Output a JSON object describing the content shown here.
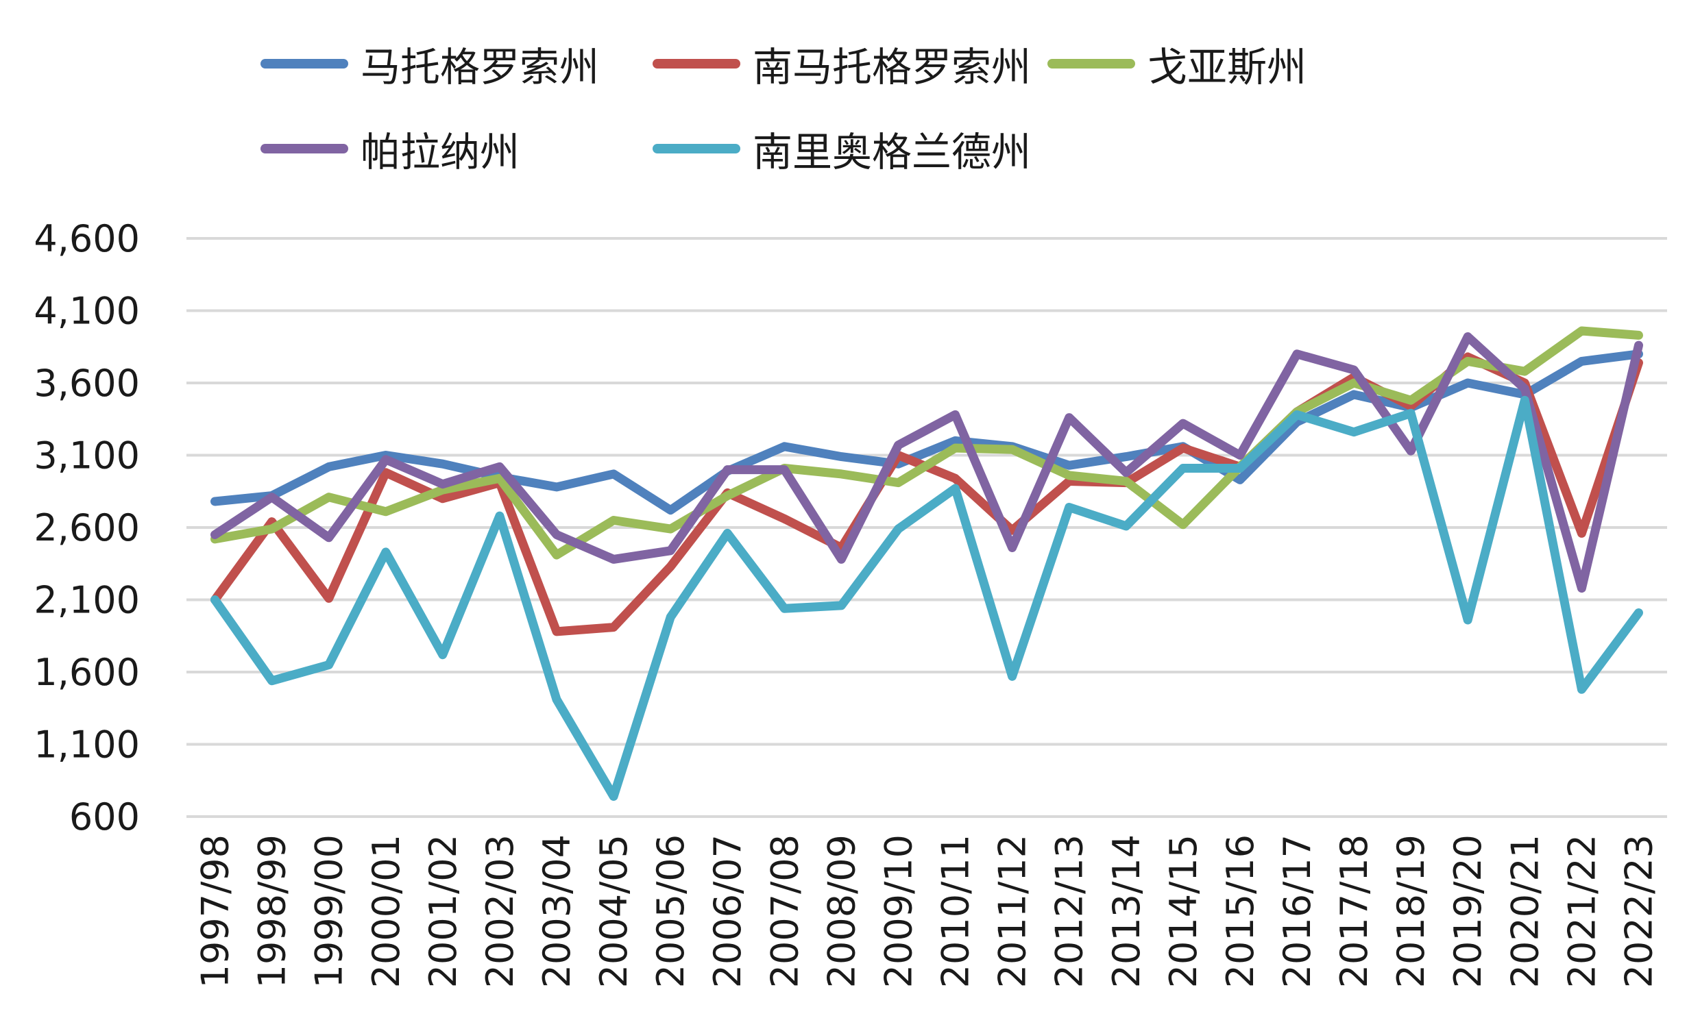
{
  "chart_data": {
    "type": "line",
    "title": "",
    "xlabel": "",
    "ylabel": "",
    "ylim": [
      600,
      4600
    ],
    "yticks": [
      "600",
      "1,100",
      "1,600",
      "2,100",
      "2,600",
      "3,100",
      "3,600",
      "4,100",
      "4,600"
    ],
    "ytick_values": [
      600,
      1100,
      1600,
      2100,
      2600,
      3100,
      3600,
      4100,
      4600
    ],
    "grid": "horizontal",
    "legend_position": "top",
    "categories": [
      "1997/98",
      "1998/99",
      "1999/00",
      "2000/01",
      "2001/02",
      "2002/03",
      "2003/04",
      "2004/05",
      "2005/06",
      "2006/07",
      "2007/08",
      "2008/09",
      "2009/10",
      "2010/11",
      "2011/12",
      "2012/13",
      "2013/14",
      "2014/15",
      "2015/16",
      "2016/17",
      "2017/18",
      "2018/19",
      "2019/20",
      "2020/21",
      "2021/22",
      "2022/23"
    ],
    "series": [
      {
        "name": "马托格罗索州",
        "color": "#4f81bd",
        "values": [
          2780,
          2820,
          3020,
          3100,
          3040,
          2950,
          2880,
          2970,
          2720,
          2990,
          3160,
          3090,
          3040,
          3200,
          3160,
          3030,
          3090,
          3160,
          2930,
          3330,
          3520,
          3430,
          3600,
          3520,
          3750,
          3800
        ]
      },
      {
        "name": "南马托格罗索州",
        "color": "#c0504d",
        "values": [
          2100,
          2640,
          2110,
          2980,
          2800,
          2910,
          1880,
          1910,
          2330,
          2840,
          2660,
          2460,
          3100,
          2940,
          2580,
          2920,
          2910,
          3150,
          3020,
          3400,
          3640,
          3440,
          3780,
          3600,
          2560,
          3740
        ]
      },
      {
        "name": "戈亚斯州",
        "color": "#9bbb59",
        "values": [
          2520,
          2590,
          2810,
          2710,
          2860,
          2940,
          2410,
          2650,
          2590,
          2820,
          3010,
          2970,
          2910,
          3150,
          3140,
          2960,
          2920,
          2620,
          3020,
          3400,
          3600,
          3480,
          3750,
          3680,
          3960,
          3930
        ]
      },
      {
        "name": "帕拉纳州",
        "color": "#8064a2",
        "values": [
          2550,
          2810,
          2530,
          3070,
          2900,
          3020,
          2550,
          2380,
          2440,
          3000,
          3000,
          2380,
          3170,
          3380,
          2460,
          3360,
          2980,
          3320,
          3100,
          3800,
          3690,
          3130,
          3920,
          3560,
          2180,
          3860
        ]
      },
      {
        "name": "南里奥格兰德州",
        "color": "#4bacc6",
        "values": [
          2100,
          1540,
          1650,
          2430,
          1720,
          2680,
          1410,
          740,
          1980,
          2560,
          2040,
          2060,
          2590,
          2870,
          1570,
          2740,
          2610,
          3010,
          3010,
          3380,
          3260,
          3390,
          1960,
          3480,
          1480,
          2010
        ]
      }
    ]
  }
}
